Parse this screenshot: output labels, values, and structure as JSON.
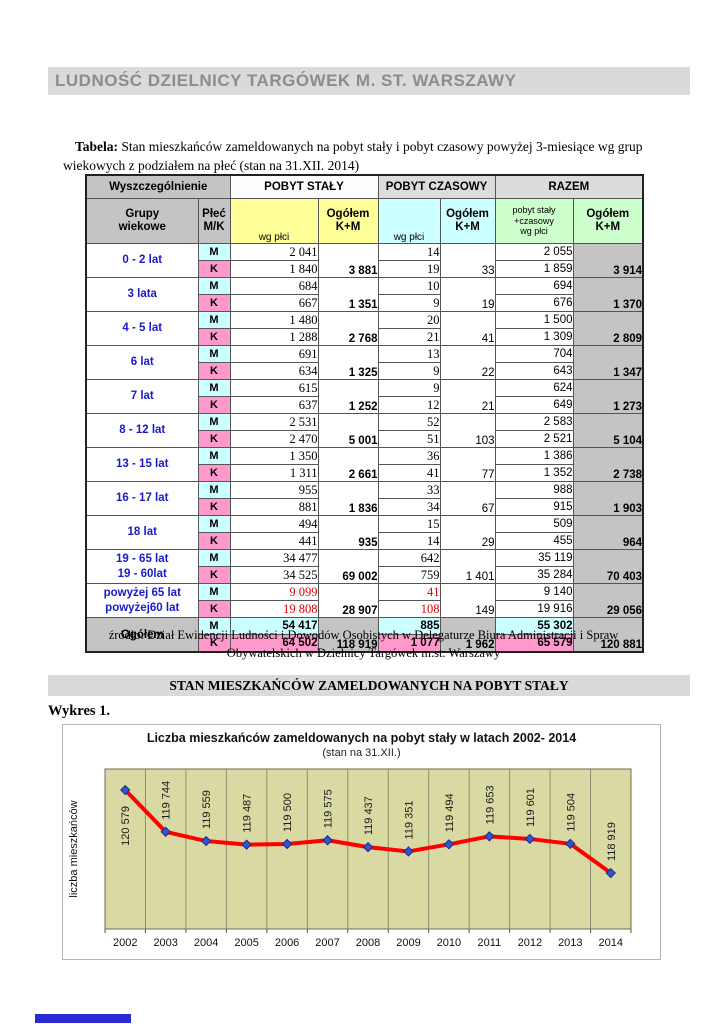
{
  "page": {
    "banner_title": "LUDNOŚĆ DZIELNICY TARGÓWEK M. ST. WARSZAWY",
    "caption_label": "Tabela:",
    "caption_text": " Stan mieszkańców zameldowanych na pobyt stały i pobyt czasowy powyżej 3-miesiące wg grup wiekowych z podziałem na płeć (stan na 31.XII. 2014)",
    "source": "źródło: Dział Ewidencji Ludności i Dowodów Osobistych w Delegaturze Biura Administracji i Spraw Obywatelskich w Dzielnicy Targówek m.st. Warszawy",
    "section_heading": "STAN MIESZKAŃCÓW ZAMELDOWANYCH NA POBYT STAŁY",
    "figure_label": "Wykres 1."
  },
  "table": {
    "sex_m": "M",
    "sex_k": "K",
    "headers": {
      "wyszczegolnienie": "Wyszczególnienie",
      "pobyt_staly": "POBYT STAŁY",
      "pobyt_czasowy": "POBYT CZASOWY",
      "razem": "RAZEM",
      "grupy_wiekowe": "Grupy\nwiekowe",
      "plec": "Płeć\nM/K",
      "wg_plci": "wg płci",
      "ogolem_km": "Ogółem\nK+M",
      "razem_wg_plci": "pobyt stały\n+czasowy\nwg płci"
    },
    "rows": [
      {
        "label": "0 - 2 lat",
        "m": [
          "2 041",
          "14",
          "2 055"
        ],
        "k": [
          "1 840",
          "19",
          "1 859"
        ],
        "og": [
          "3 881",
          "33",
          "3 914"
        ]
      },
      {
        "label": "3 lata",
        "m": [
          "684",
          "10",
          "694"
        ],
        "k": [
          "667",
          "9",
          "676"
        ],
        "og": [
          "1 351",
          "19",
          "1 370"
        ]
      },
      {
        "label": "4 - 5 lat",
        "m": [
          "1 480",
          "20",
          "1 500"
        ],
        "k": [
          "1 288",
          "21",
          "1 309"
        ],
        "og": [
          "2 768",
          "41",
          "2 809"
        ]
      },
      {
        "label": "6 lat",
        "m": [
          "691",
          "13",
          "704"
        ],
        "k": [
          "634",
          "9",
          "643"
        ],
        "og": [
          "1 325",
          "22",
          "1 347"
        ]
      },
      {
        "label": "7 lat",
        "m": [
          "615",
          "9",
          "624"
        ],
        "k": [
          "637",
          "12",
          "649"
        ],
        "og": [
          "1 252",
          "21",
          "1 273"
        ]
      },
      {
        "label": "8 - 12 lat",
        "m": [
          "2 531",
          "52",
          "2 583"
        ],
        "k": [
          "2 470",
          "51",
          "2 521"
        ],
        "og": [
          "5 001",
          "103",
          "5 104"
        ]
      },
      {
        "label": "13 - 15 lat",
        "m": [
          "1 350",
          "36",
          "1 386"
        ],
        "k": [
          "1 311",
          "41",
          "1 352"
        ],
        "og": [
          "2 661",
          "77",
          "2 738"
        ]
      },
      {
        "label": "16 - 17 lat",
        "m": [
          "955",
          "33",
          "988"
        ],
        "k": [
          "881",
          "34",
          "915"
        ],
        "og": [
          "1 836",
          "67",
          "1 903"
        ]
      },
      {
        "label": "18 lat",
        "m": [
          "494",
          "15",
          "509"
        ],
        "k": [
          "441",
          "14",
          "455"
        ],
        "og": [
          "935",
          "29",
          "964"
        ]
      },
      {
        "label": "19 - 65 lat\n19 - 60lat",
        "m": [
          "34 477",
          "642",
          "35 119"
        ],
        "k": [
          "34 525",
          "759",
          "35 284"
        ],
        "og": [
          "69 002",
          "1 401",
          "70 403"
        ]
      },
      {
        "label": "powyżej 65 lat\npowyżej60 lat",
        "m": [
          "9 099",
          "41",
          "9 140"
        ],
        "k": [
          "19 808",
          "108",
          "19 916"
        ],
        "og": [
          "28 907",
          "149",
          "29 056"
        ],
        "red": true
      }
    ],
    "total": {
      "label": "Ogółem",
      "m": [
        "54 417",
        "885",
        "55 302"
      ],
      "k": [
        "64 502",
        "1 077",
        "65 579"
      ],
      "og": [
        "118 919",
        "1 962",
        "120 881"
      ]
    }
  },
  "chart_data": {
    "type": "line",
    "title": "Liczba mieszkańców zameldowanych na pobyt stały w latach 2002- 2014",
    "subtitle": "(stan na 31.XII.)",
    "ylabel": "liczba mieszkańców",
    "categories": [
      "2002",
      "2003",
      "2004",
      "2005",
      "2006",
      "2007",
      "2008",
      "2009",
      "2010",
      "2011",
      "2012",
      "2013",
      "2014"
    ],
    "values": [
      120579,
      119744,
      119559,
      119487,
      119500,
      119575,
      119437,
      119351,
      119494,
      119653,
      119601,
      119504,
      118919
    ],
    "labels": [
      "120 579",
      "119 744",
      "119 559",
      "119 487",
      "119 500",
      "119 575",
      "119 437",
      "119 351",
      "119 494",
      "119 653",
      "119 601",
      "119 504",
      "118 919"
    ],
    "ylim": [
      117800,
      121000
    ],
    "grid": "vertical",
    "legend": "none",
    "series_color": "#ff0000",
    "marker_color": "#3355cc",
    "plot_bg": "#d9d9a3",
    "grid_color": "#8f8f6e"
  }
}
